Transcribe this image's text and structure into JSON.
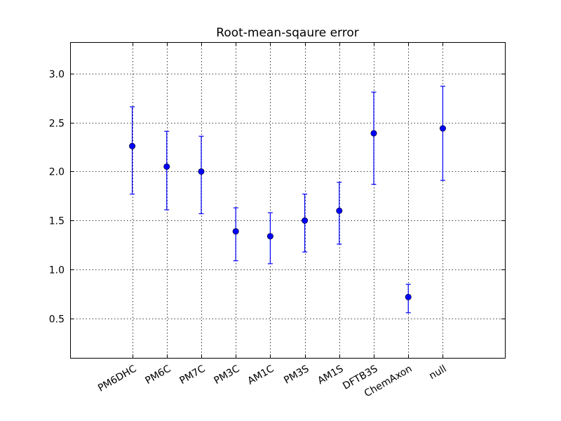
{
  "chart_data": {
    "type": "scatter",
    "title": "Root-mean-sqaure error",
    "xlabel": "",
    "ylabel": "",
    "categories": [
      "PM6DHC",
      "PM6C",
      "PM7C",
      "PM3C",
      "AM1C",
      "PM3S",
      "AM1S",
      "DFTB3S",
      "ChemAxon",
      "null"
    ],
    "values": [
      2.26,
      2.05,
      2.0,
      1.39,
      1.34,
      1.5,
      1.6,
      2.39,
      0.72,
      2.44
    ],
    "error_low": [
      1.77,
      1.61,
      1.57,
      1.09,
      1.06,
      1.18,
      1.26,
      1.87,
      0.56,
      1.91
    ],
    "error_high": [
      2.66,
      2.41,
      2.36,
      1.63,
      1.58,
      1.77,
      1.89,
      2.81,
      0.85,
      2.87
    ],
    "ylim": [
      0.1,
      3.32
    ],
    "xlim": [
      -1.8,
      10.8
    ],
    "yticks": [
      0.5,
      1.0,
      1.5,
      2.0,
      2.5,
      3.0
    ],
    "ytick_labels": [
      "0.5",
      "1.0",
      "1.5",
      "2.0",
      "2.5",
      "3.0"
    ],
    "xtick_rotation_deg": 30,
    "grid": true,
    "legend": "none",
    "colors": {
      "series": "#0000ff",
      "marker_edge": "#000000",
      "grid": "#000000",
      "axes": "#000000"
    }
  }
}
